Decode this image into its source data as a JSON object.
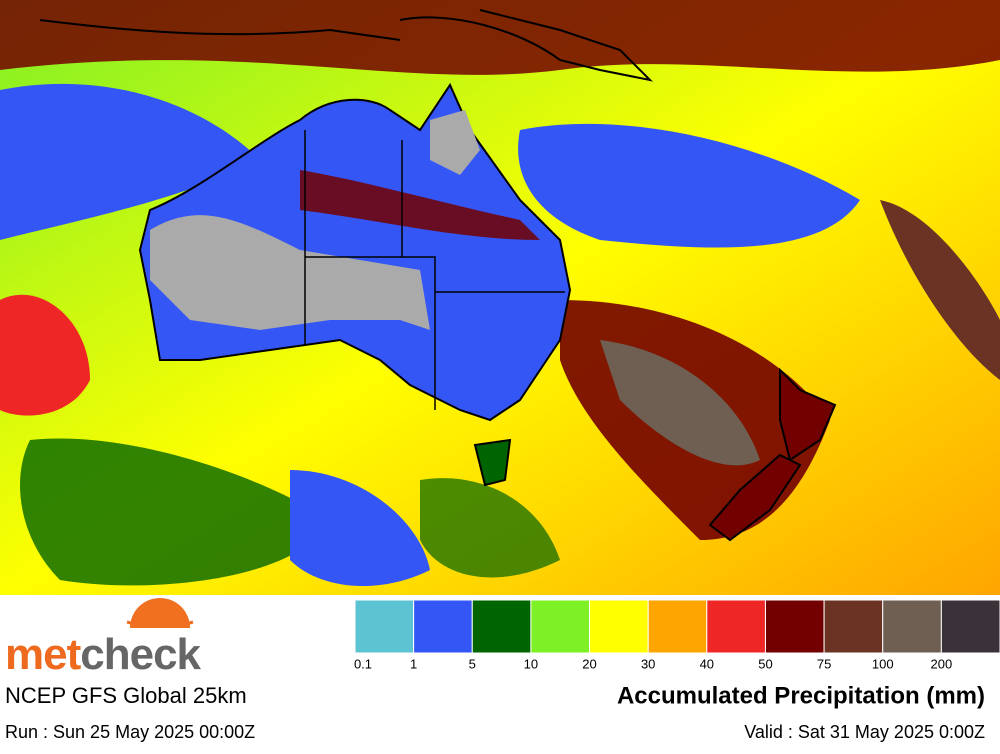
{
  "logo": {
    "parts": [
      "met",
      "check"
    ]
  },
  "model": "NCEP GFS Global 25km",
  "run": "Run : Sun 25 May 2025 00:00Z",
  "legend": {
    "title": "Accumulated Precipitation (mm)",
    "thresholds": [
      0.1,
      1,
      5,
      10,
      20,
      30,
      40,
      50,
      75,
      100,
      200
    ],
    "colors": [
      "#5cc3d3",
      "#3456f5",
      "#006400",
      "#7ef026",
      "#ffff00",
      "#ffa500",
      "#ee2626",
      "#730000",
      "#6b3324",
      "#6e5f52",
      "#3b3138"
    ]
  },
  "valid": "Valid : Sat 31 May 2025 0:00Z"
}
